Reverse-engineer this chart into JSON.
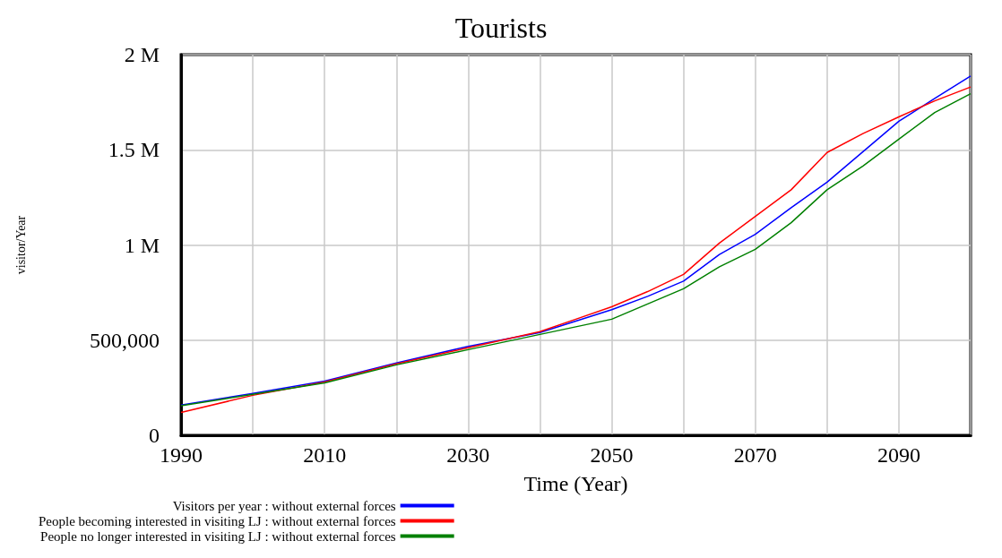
{
  "chart_data": {
    "type": "line",
    "title": "Tourists",
    "xlabel": "Time (Year)",
    "ylabel": "visitor/Year",
    "x": [
      1990,
      2000,
      2010,
      2020,
      2030,
      2040,
      2045,
      2050,
      2055,
      2060,
      2065,
      2070,
      2075,
      2080,
      2085,
      2090,
      2095,
      2100
    ],
    "series": [
      {
        "name": "Visitors per year : without external forces",
        "color": "#0000ff",
        "values": [
          159000,
          220000,
          285000,
          380000,
          467000,
          540000,
          600000,
          660000,
          730000,
          810000,
          950000,
          1056000,
          1196000,
          1330000,
          1490000,
          1650000,
          1770000,
          1888000
        ]
      },
      {
        "name": "People becoming interested in visiting LJ : without external forces",
        "color": "#ff0000",
        "values": [
          120000,
          210000,
          280000,
          375000,
          460000,
          545000,
          610000,
          675000,
          755000,
          845000,
          1010000,
          1150000,
          1290000,
          1486000,
          1585000,
          1673000,
          1757000,
          1830000
        ]
      },
      {
        "name": "People no longer interested in visiting LJ : without external forces",
        "color": "#008000",
        "values": [
          155000,
          215000,
          275000,
          370000,
          450000,
          530000,
          570000,
          610000,
          690000,
          770000,
          885000,
          977000,
          1117000,
          1290000,
          1415000,
          1556000,
          1696000,
          1795000
        ]
      }
    ],
    "xlim": [
      1990,
      2100
    ],
    "xticks": [
      1990,
      2010,
      2030,
      2050,
      2070,
      2090
    ],
    "ylim": [
      0,
      2000000
    ],
    "yticks": [
      0,
      {
        "value": 500000,
        "label": "500,000"
      },
      {
        "value": 1000000,
        "label": "1 M"
      },
      {
        "value": 1500000,
        "label": "1.5 M"
      },
      {
        "value": 2000000,
        "label": "2 M"
      }
    ],
    "grid": true,
    "legend": "bottom",
    "marker": "none"
  }
}
